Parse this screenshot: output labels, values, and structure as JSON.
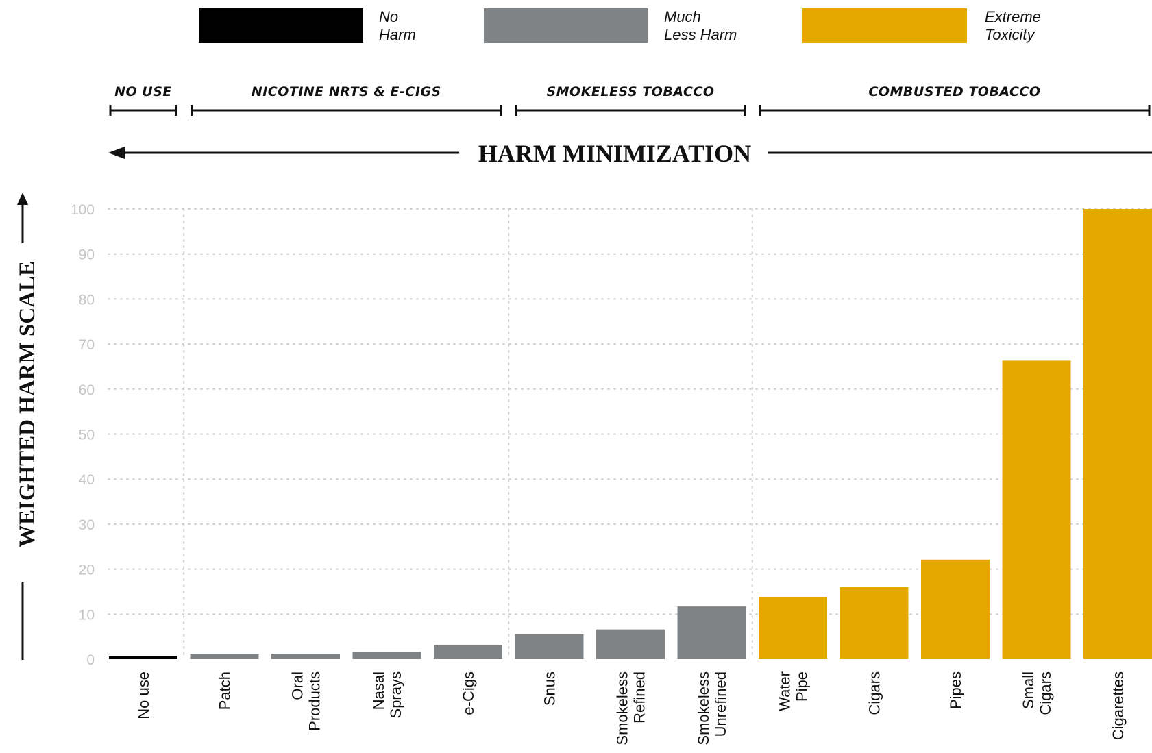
{
  "legend": [
    {
      "lines": [
        "No",
        "Harm"
      ],
      "color": "#000000"
    },
    {
      "lines": [
        "Much",
        "Less Harm"
      ],
      "color": "#808385"
    },
    {
      "lines": [
        "Extreme",
        "Toxicity"
      ],
      "color": "#E5A800"
    }
  ],
  "groups": [
    {
      "label": "NO USE",
      "first": 0,
      "last": 0
    },
    {
      "label": "NICOTINE NRTS & E-CIGS",
      "first": 1,
      "last": 4
    },
    {
      "label": "SMOKELESS TOBACCO",
      "first": 5,
      "last": 7
    },
    {
      "label": "COMBUSTED TOBACCO",
      "first": 8,
      "last": 12
    }
  ],
  "banner": {
    "text": "HARM MINIMIZATION",
    "direction": "left"
  },
  "chart_data": {
    "type": "bar",
    "ylabel": "WEIGHTED HARM SCALE",
    "ylim": [
      0,
      100
    ],
    "yticks": [
      0,
      10,
      20,
      30,
      40,
      50,
      60,
      70,
      80,
      90,
      100
    ],
    "grid": true,
    "categories": [
      [
        "No use"
      ],
      [
        "Patch"
      ],
      [
        "Oral",
        "Products"
      ],
      [
        "Nasal",
        "Sprays"
      ],
      [
        "e-Cigs"
      ],
      [
        "Snus"
      ],
      [
        "Smokeless",
        "Refined"
      ],
      [
        "Smokeless",
        "Unrefined"
      ],
      [
        "Water",
        "Pipe"
      ],
      [
        "Cigars"
      ],
      [
        "Pipes"
      ],
      [
        "Small",
        "Cigars"
      ],
      [
        "Cigarettes"
      ]
    ],
    "values": [
      0.5,
      1.2,
      1.2,
      1.6,
      3.2,
      5.5,
      6.6,
      11.7,
      13.8,
      16,
      22.1,
      66.3,
      100
    ],
    "colors": [
      "#000000",
      "#808385",
      "#808385",
      "#808385",
      "#808385",
      "#808385",
      "#808385",
      "#808385",
      "#E5A800",
      "#E5A800",
      "#E5A800",
      "#E5A800",
      "#E5A800"
    ]
  }
}
